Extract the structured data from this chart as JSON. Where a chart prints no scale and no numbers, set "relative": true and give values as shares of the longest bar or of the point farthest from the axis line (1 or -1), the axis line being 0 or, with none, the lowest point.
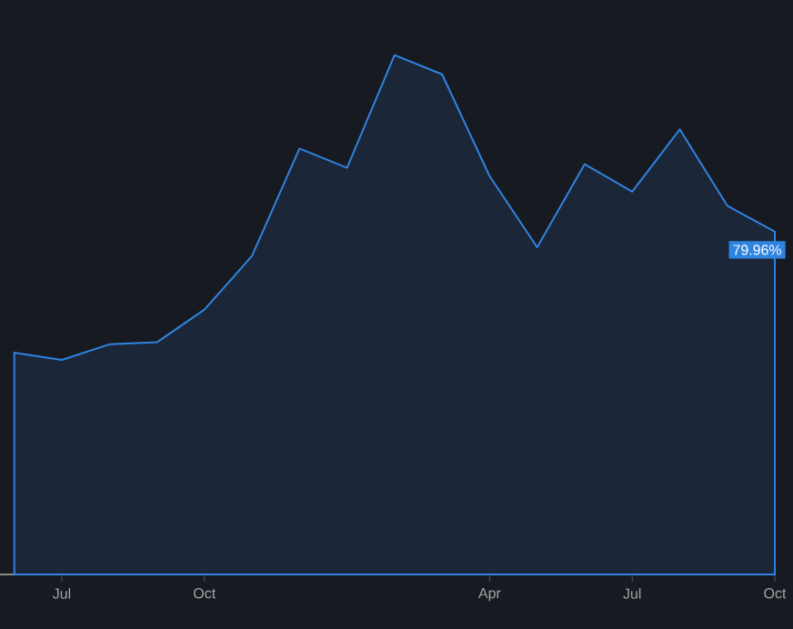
{
  "chart_data": {
    "type": "area",
    "relative": true,
    "categories": [
      null,
      "Jul",
      null,
      null,
      "Oct",
      null,
      null,
      null,
      null,
      null,
      "Apr",
      null,
      null,
      "Jul",
      null,
      null,
      "Oct"
    ],
    "series": [
      {
        "color": "#2f84e0",
        "values": [
          0.427,
          0.413,
          0.443,
          0.447,
          0.51,
          0.613,
          0.82,
          0.783,
          1,
          0.963,
          0.767,
          0.63,
          0.79,
          0.737,
          0.857,
          0.71,
          0.66
        ]
      }
    ],
    "annotations": [
      "79.96%"
    ]
  }
}
